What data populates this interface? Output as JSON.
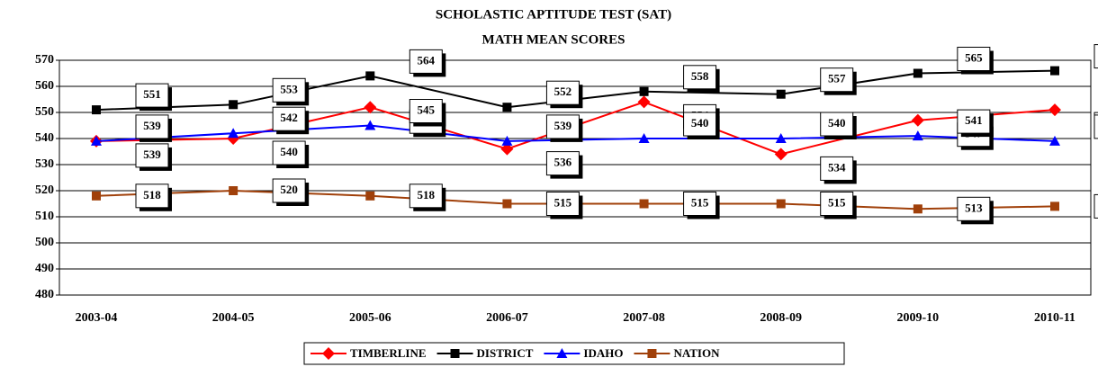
{
  "chart_data": {
    "type": "line",
    "title": "SCHOLASTIC APTITUDE TEST (SAT)",
    "subtitle": "MATH MEAN SCORES",
    "categories": [
      "2003-04",
      "2004-05",
      "2005-06",
      "2006-07",
      "2007-08",
      "2008-09",
      "2009-10",
      "2010-11"
    ],
    "series": [
      {
        "name": "TIMBERLINE",
        "color": "#ff0000",
        "marker": "diamond",
        "values": [
          539,
          540,
          552,
          536,
          554,
          534,
          547,
          551
        ]
      },
      {
        "name": "DISTRICT",
        "color": "#000000",
        "marker": "square",
        "values": [
          551,
          553,
          564,
          552,
          558,
          557,
          565,
          566
        ]
      },
      {
        "name": "IDAHO",
        "color": "#0000ff",
        "marker": "triangle",
        "values": [
          539,
          542,
          545,
          539,
          540,
          540,
          541,
          539
        ]
      },
      {
        "name": "NATION",
        "color": "#a0400a",
        "marker": "square",
        "values": [
          518,
          520,
          518,
          515,
          515,
          515,
          513,
          514
        ]
      }
    ],
    "ylim": [
      480,
      570
    ],
    "yticks": [
      480,
      490,
      500,
      510,
      520,
      530,
      540,
      550,
      560,
      570
    ],
    "grid": true,
    "legend": "bottom"
  }
}
